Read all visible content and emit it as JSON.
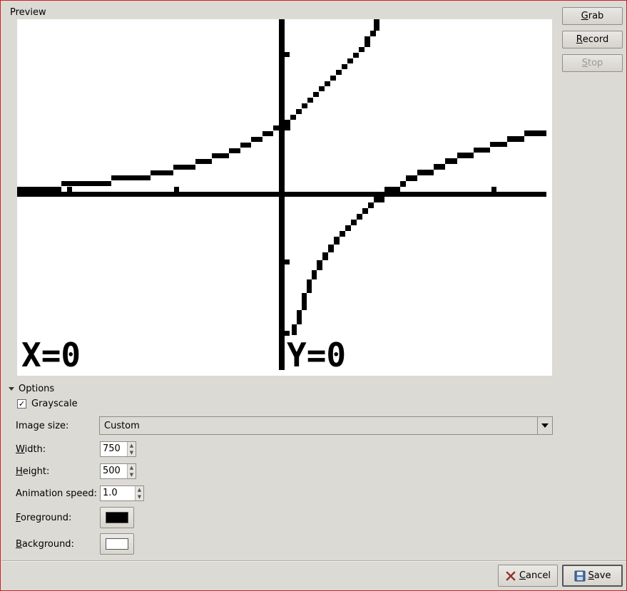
{
  "preview": {
    "label": "Preview",
    "readout_left": "X=0",
    "readout_right": "Y=0"
  },
  "side_buttons": {
    "grab_mn": "G",
    "grab_rest": "rab",
    "record_mn": "R",
    "record_rest": "ecord",
    "stop_mn": "S",
    "stop_rest": "top"
  },
  "options": {
    "expander_label": "Options",
    "grayscale_label": "Grayscale",
    "grayscale_checked": "✓",
    "image_size_label": "Image size:",
    "image_size_value": "Custom",
    "width_label_mn": "W",
    "width_label_rest": "idth:",
    "width_value": "750",
    "height_label_mn": "H",
    "height_label_rest": "eight:",
    "height_value": "500",
    "animation_speed_label": "Animation speed:",
    "animation_speed_value": "1.0",
    "foreground_label_mn": "F",
    "foreground_label_rest": "oreground:",
    "background_label_mn": "B",
    "background_label_rest": "ackground:",
    "foreground_color": "#000000",
    "background_color": "#ffffff"
  },
  "dialog_buttons": {
    "cancel_mn": "C",
    "cancel_rest": "ancel",
    "save_mn": "S",
    "save_rest": "ave"
  }
}
